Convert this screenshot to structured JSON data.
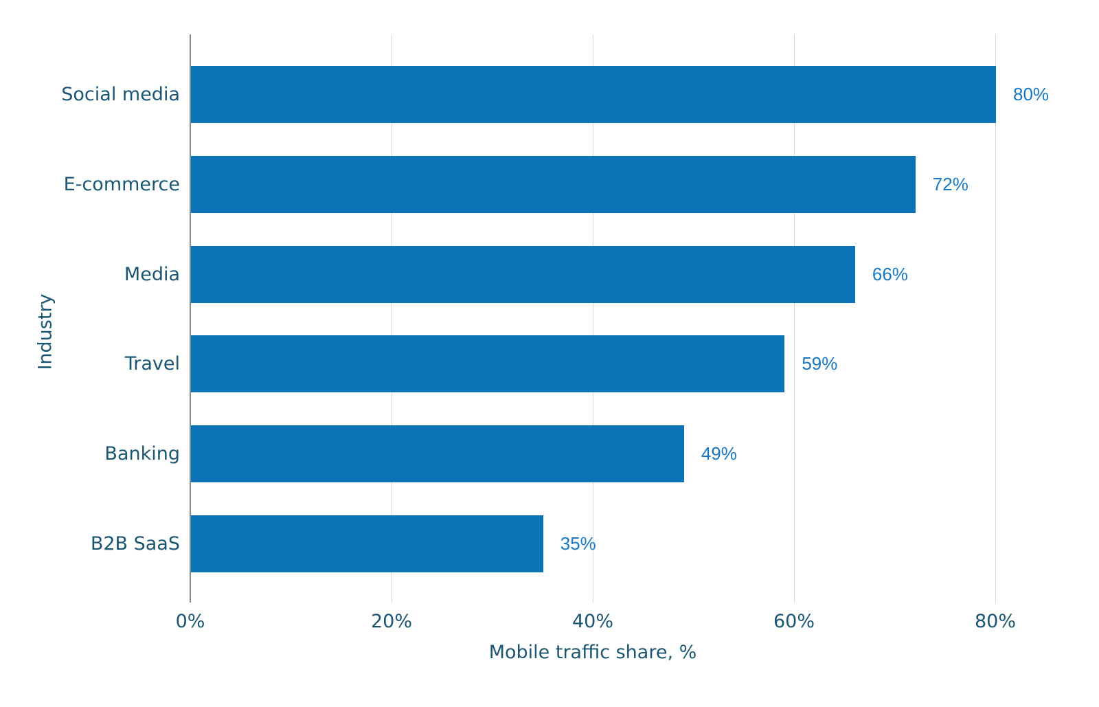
{
  "chart_data": {
    "type": "bar",
    "orientation": "horizontal",
    "title": "",
    "categories": [
      "Social media",
      "E-commerce",
      "Media",
      "Travel",
      "Banking",
      "B2B SaaS"
    ],
    "values": [
      80,
      72,
      66,
      59,
      49,
      35
    ],
    "value_labels": [
      "80%",
      "72%",
      "66%",
      "59%",
      "49%",
      "35%"
    ],
    "xlabel": "Mobile traffic share, %",
    "ylabel": "Industry",
    "x_ticks": [
      {
        "value": 0,
        "label": "0%"
      },
      {
        "value": 20,
        "label": "20%"
      },
      {
        "value": 40,
        "label": "40%"
      },
      {
        "value": 60,
        "label": "60%"
      },
      {
        "value": 80,
        "label": "80%"
      }
    ],
    "xlim": [
      0,
      80
    ],
    "grid": "vertical-only",
    "legend": "none",
    "colors": {
      "bar": "#0b73b6",
      "value_label": "#1878c2",
      "axis_text": "#1a5572",
      "axis_line": "#8a8a8a",
      "gridline": "#d9d9d9",
      "background": "#ffffff"
    }
  }
}
